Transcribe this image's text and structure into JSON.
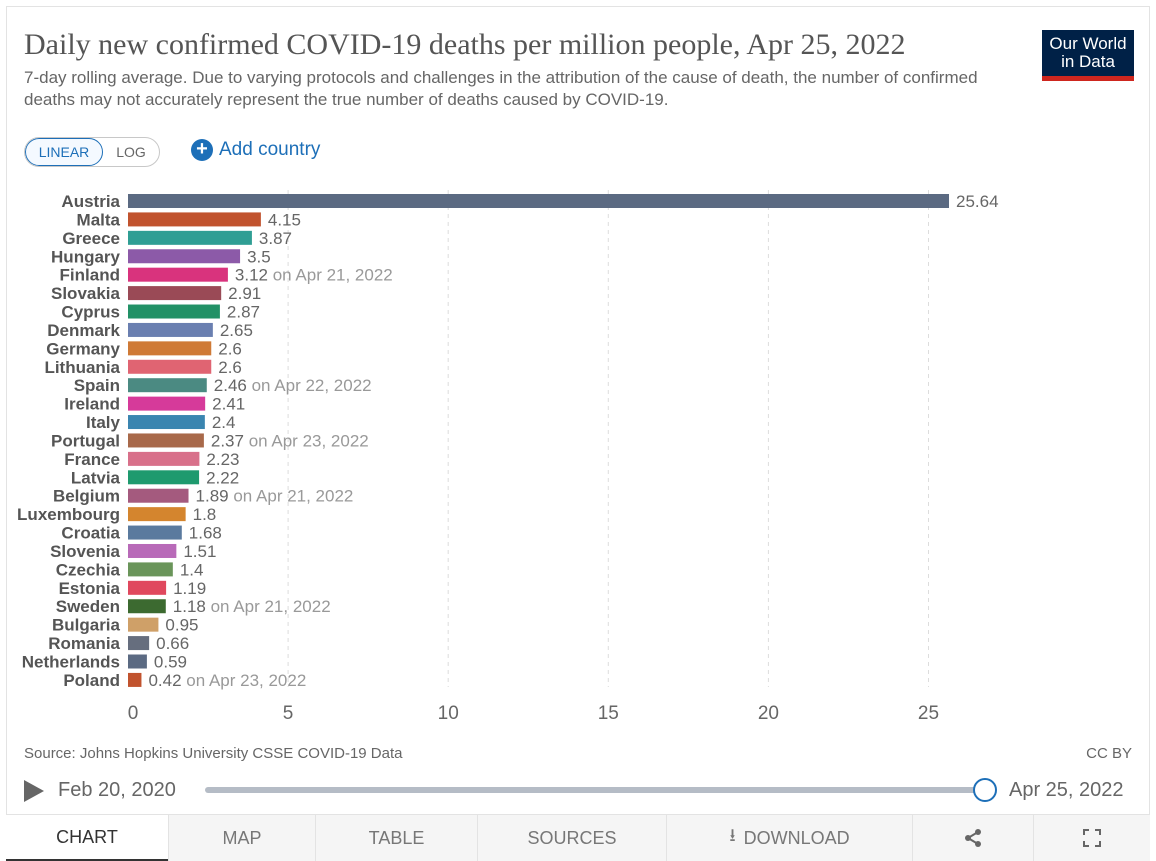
{
  "header": {
    "title": "Daily new confirmed COVID-19 deaths per million people, Apr 25, 2022",
    "subtitle": "7-day rolling average. Due to varying protocols and challenges in the attribution of the cause of death, the number of confirmed deaths may not accurately represent the true number of deaths caused by COVID-19.",
    "logo_line1": "Our World",
    "logo_line2": "in Data"
  },
  "controls": {
    "linear_label": "LINEAR",
    "log_label": "LOG",
    "add_country_label": "Add country"
  },
  "chart_data": {
    "type": "bar",
    "orientation": "horizontal",
    "title": "Daily new confirmed COVID-19 deaths per million people, Apr 25, 2022",
    "xlim": [
      0,
      25.64
    ],
    "xticks": [
      0,
      5,
      10,
      15,
      20,
      25
    ],
    "grid": true,
    "categories": [
      "Austria",
      "Malta",
      "Greece",
      "Hungary",
      "Finland",
      "Slovakia",
      "Cyprus",
      "Denmark",
      "Germany",
      "Lithuania",
      "Spain",
      "Ireland",
      "Italy",
      "Portugal",
      "France",
      "Latvia",
      "Belgium",
      "Luxembourg",
      "Croatia",
      "Slovenia",
      "Czechia",
      "Estonia",
      "Sweden",
      "Bulgaria",
      "Romania",
      "Netherlands",
      "Poland"
    ],
    "values": [
      25.64,
      4.15,
      3.87,
      3.5,
      3.12,
      2.91,
      2.87,
      2.65,
      2.6,
      2.6,
      2.46,
      2.41,
      2.4,
      2.37,
      2.23,
      2.22,
      1.89,
      1.8,
      1.68,
      1.51,
      1.4,
      1.19,
      1.18,
      0.95,
      0.66,
      0.59,
      0.42
    ],
    "value_labels": [
      "25.64",
      "4.15",
      "3.87",
      "3.5",
      "3.12",
      "2.91",
      "2.87",
      "2.65",
      "2.6",
      "2.6",
      "2.46",
      "2.41",
      "2.4",
      "2.37",
      "2.23",
      "2.22",
      "1.89",
      "1.8",
      "1.68",
      "1.51",
      "1.4",
      "1.19",
      "1.18",
      "0.95",
      "0.66",
      "0.59",
      "0.42"
    ],
    "date_notes": [
      "",
      "",
      "",
      "",
      "on Apr 21, 2022",
      "",
      "",
      "",
      "",
      "",
      "on Apr 22, 2022",
      "",
      "",
      "on Apr 23, 2022",
      "",
      "",
      "on Apr 21, 2022",
      "",
      "",
      "",
      "",
      "",
      "on Apr 21, 2022",
      "",
      "",
      "",
      "on Apr 23, 2022"
    ],
    "colors": [
      "#5b6a82",
      "#c1532e",
      "#2f9e94",
      "#8c5aa8",
      "#d9337d",
      "#9a4a56",
      "#229166",
      "#6a7fb0",
      "#cf7a36",
      "#e06472",
      "#4b8a82",
      "#d63a9a",
      "#3a85b0",
      "#a8694a",
      "#d8708a",
      "#1e9a6e",
      "#a45a7e",
      "#d4852e",
      "#5a7a9e",
      "#b86ab8",
      "#6a955a",
      "#e0485e",
      "#3c6a30",
      "#cfa068",
      "#666e7e",
      "#5b6a82",
      "#c1532e"
    ]
  },
  "footer": {
    "source": "Source: Johns Hopkins University CSSE COVID-19 Data",
    "license": "CC BY"
  },
  "timeline": {
    "start": "Feb 20, 2020",
    "end": "Apr 25, 2022"
  },
  "tabs": {
    "chart": "CHART",
    "map": "MAP",
    "table": "TABLE",
    "sources": "SOURCES",
    "download": "DOWNLOAD"
  }
}
